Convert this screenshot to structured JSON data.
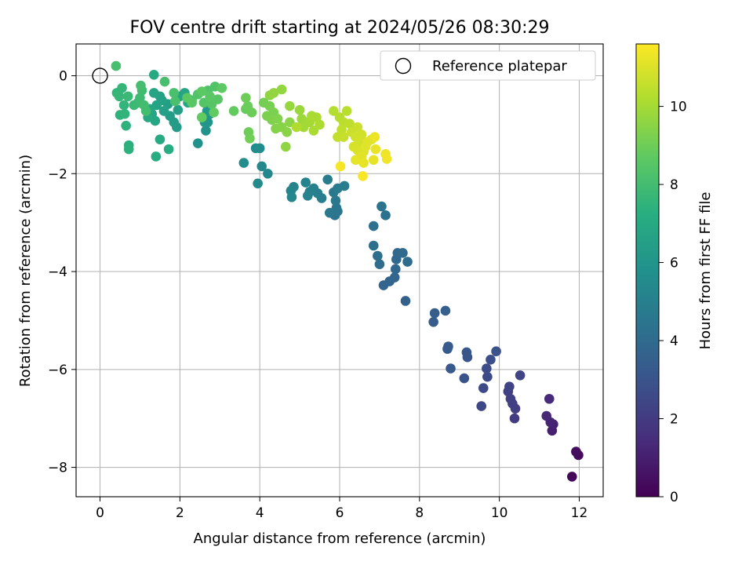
{
  "chart_data": {
    "type": "scatter",
    "title": "FOV centre drift starting at 2024/05/26 08:30:29",
    "xlabel": "Angular distance from reference (arcmin)",
    "ylabel": "Rotation from reference (arcmin)",
    "xlim": [
      -0.6,
      12.6
    ],
    "ylim": [
      -8.6,
      0.65
    ],
    "xticks": [
      0,
      2,
      4,
      6,
      8,
      10,
      12
    ],
    "yticks": [
      0,
      -2,
      -4,
      -6,
      -8
    ],
    "grid": true,
    "legend": {
      "position": "top-right",
      "entries": [
        "Reference platepar"
      ]
    },
    "reference_point": {
      "x": 0,
      "y": 0
    },
    "colorbar": {
      "label": "Hours from first FF file",
      "range": [
        0,
        11.6
      ],
      "ticks": [
        0,
        2,
        4,
        6,
        8,
        10
      ],
      "colormap": "viridis"
    },
    "series": [
      {
        "values": [
          {
            "x": 11.82,
            "y": -8.19,
            "c": 0.2
          },
          {
            "x": 11.98,
            "y": -7.75,
            "c": 0.3
          },
          {
            "x": 11.92,
            "y": -7.68,
            "c": 0.4
          },
          {
            "x": 11.32,
            "y": -7.25,
            "c": 1.0
          },
          {
            "x": 11.35,
            "y": -7.12,
            "c": 1.1
          },
          {
            "x": 11.28,
            "y": -7.08,
            "c": 1.2
          },
          {
            "x": 11.18,
            "y": -6.95,
            "c": 1.3
          },
          {
            "x": 11.25,
            "y": -6.6,
            "c": 1.4
          },
          {
            "x": 10.38,
            "y": -7.0,
            "c": 2.0
          },
          {
            "x": 10.4,
            "y": -6.8,
            "c": 2.1
          },
          {
            "x": 10.33,
            "y": -6.7,
            "c": 2.15
          },
          {
            "x": 10.28,
            "y": -6.6,
            "c": 2.2
          },
          {
            "x": 10.22,
            "y": -6.45,
            "c": 2.25
          },
          {
            "x": 10.25,
            "y": -6.35,
            "c": 2.3
          },
          {
            "x": 10.52,
            "y": -6.12,
            "c": 2.4
          },
          {
            "x": 9.55,
            "y": -6.75,
            "c": 2.5
          },
          {
            "x": 9.6,
            "y": -6.38,
            "c": 2.55
          },
          {
            "x": 9.7,
            "y": -6.15,
            "c": 2.6
          },
          {
            "x": 9.68,
            "y": -5.98,
            "c": 2.7
          },
          {
            "x": 9.78,
            "y": -5.8,
            "c": 2.8
          },
          {
            "x": 9.92,
            "y": -5.63,
            "c": 2.9
          },
          {
            "x": 9.12,
            "y": -6.18,
            "c": 3.0
          },
          {
            "x": 9.2,
            "y": -5.75,
            "c": 3.05
          },
          {
            "x": 9.18,
            "y": -5.65,
            "c": 3.1
          },
          {
            "x": 8.78,
            "y": -5.98,
            "c": 3.2
          },
          {
            "x": 8.7,
            "y": -5.58,
            "c": 3.25
          },
          {
            "x": 8.72,
            "y": -5.53,
            "c": 3.3
          },
          {
            "x": 8.35,
            "y": -5.03,
            "c": 3.4
          },
          {
            "x": 8.38,
            "y": -4.85,
            "c": 3.45
          },
          {
            "x": 8.65,
            "y": -4.8,
            "c": 3.5
          },
          {
            "x": 7.65,
            "y": -4.6,
            "c": 3.6
          },
          {
            "x": 7.1,
            "y": -4.28,
            "c": 3.7
          },
          {
            "x": 7.25,
            "y": -4.2,
            "c": 3.75
          },
          {
            "x": 7.38,
            "y": -4.12,
            "c": 3.8
          },
          {
            "x": 7.4,
            "y": -3.95,
            "c": 3.85
          },
          {
            "x": 7.42,
            "y": -3.75,
            "c": 3.9
          },
          {
            "x": 7.45,
            "y": -3.62,
            "c": 3.95
          },
          {
            "x": 7.58,
            "y": -3.62,
            "c": 4.0
          },
          {
            "x": 7.7,
            "y": -3.8,
            "c": 4.05
          },
          {
            "x": 7.0,
            "y": -3.85,
            "c": 4.1
          },
          {
            "x": 6.95,
            "y": -3.68,
            "c": 4.15
          },
          {
            "x": 6.85,
            "y": -3.47,
            "c": 4.2
          },
          {
            "x": 6.85,
            "y": -3.07,
            "c": 4.3
          },
          {
            "x": 7.15,
            "y": -2.85,
            "c": 4.35
          },
          {
            "x": 7.05,
            "y": -2.67,
            "c": 4.4
          },
          {
            "x": 5.88,
            "y": -2.85,
            "c": 4.45
          },
          {
            "x": 5.95,
            "y": -2.77,
            "c": 4.5
          },
          {
            "x": 5.92,
            "y": -2.7,
            "c": 4.55
          },
          {
            "x": 5.75,
            "y": -2.8,
            "c": 4.6
          },
          {
            "x": 5.9,
            "y": -2.55,
            "c": 4.65
          },
          {
            "x": 5.85,
            "y": -2.38,
            "c": 4.7
          },
          {
            "x": 5.95,
            "y": -2.3,
            "c": 4.75
          },
          {
            "x": 6.12,
            "y": -2.25,
            "c": 4.8
          },
          {
            "x": 5.7,
            "y": -2.12,
            "c": 4.85
          },
          {
            "x": 5.55,
            "y": -2.5,
            "c": 4.9
          },
          {
            "x": 5.45,
            "y": -2.4,
            "c": 4.95
          },
          {
            "x": 5.35,
            "y": -2.3,
            "c": 5.0
          },
          {
            "x": 5.25,
            "y": -2.37,
            "c": 5.05
          },
          {
            "x": 5.2,
            "y": -2.45,
            "c": 5.1
          },
          {
            "x": 5.15,
            "y": -2.18,
            "c": 5.15
          },
          {
            "x": 4.85,
            "y": -2.27,
            "c": 5.2
          },
          {
            "x": 4.78,
            "y": -2.35,
            "c": 5.25
          },
          {
            "x": 4.8,
            "y": -2.48,
            "c": 5.3
          },
          {
            "x": 4.2,
            "y": -2.0,
            "c": 5.35
          },
          {
            "x": 4.05,
            "y": -1.85,
            "c": 5.4
          },
          {
            "x": 3.95,
            "y": -2.2,
            "c": 5.45
          },
          {
            "x": 3.9,
            "y": -1.48,
            "c": 5.5
          },
          {
            "x": 4.0,
            "y": -1.48,
            "c": 5.55
          },
          {
            "x": 3.6,
            "y": -1.78,
            "c": 5.6
          },
          {
            "x": 2.45,
            "y": -1.38,
            "c": 5.8
          },
          {
            "x": 2.65,
            "y": -1.12,
            "c": 5.9
          },
          {
            "x": 2.7,
            "y": -0.95,
            "c": 6.0
          },
          {
            "x": 2.55,
            "y": -0.85,
            "c": 6.1
          },
          {
            "x": 2.75,
            "y": -0.78,
            "c": 6.15
          },
          {
            "x": 2.68,
            "y": -0.72,
            "c": 6.2
          },
          {
            "x": 2.62,
            "y": -0.95,
            "c": 6.05
          },
          {
            "x": 1.92,
            "y": -1.05,
            "c": 6.3
          },
          {
            "x": 1.85,
            "y": -0.95,
            "c": 6.35
          },
          {
            "x": 1.75,
            "y": -0.82,
            "c": 6.4
          },
          {
            "x": 1.95,
            "y": -0.7,
            "c": 6.45
          },
          {
            "x": 1.7,
            "y": -0.58,
            "c": 6.5
          },
          {
            "x": 1.6,
            "y": -0.72,
            "c": 6.55
          },
          {
            "x": 1.55,
            "y": -0.5,
            "c": 6.6
          },
          {
            "x": 1.5,
            "y": -0.42,
            "c": 6.65
          },
          {
            "x": 1.42,
            "y": -0.6,
            "c": 6.7
          },
          {
            "x": 1.35,
            "y": -0.35,
            "c": 6.75
          },
          {
            "x": 1.3,
            "y": -0.78,
            "c": 6.8
          },
          {
            "x": 1.38,
            "y": -0.92,
            "c": 6.85
          },
          {
            "x": 1.25,
            "y": -0.68,
            "c": 6.9
          },
          {
            "x": 1.2,
            "y": -0.85,
            "c": 6.95
          },
          {
            "x": 1.35,
            "y": 0.02,
            "c": 7.0
          },
          {
            "x": 2.0,
            "y": -0.42,
            "c": 6.7
          },
          {
            "x": 2.12,
            "y": -0.35,
            "c": 6.75
          },
          {
            "x": 2.2,
            "y": -0.55,
            "c": 6.8
          },
          {
            "x": 1.5,
            "y": -1.3,
            "c": 7.0
          },
          {
            "x": 1.4,
            "y": -1.65,
            "c": 7.1
          },
          {
            "x": 1.72,
            "y": -1.5,
            "c": 7.2
          },
          {
            "x": 0.72,
            "y": -1.42,
            "c": 7.3
          },
          {
            "x": 0.72,
            "y": -1.5,
            "c": 7.35
          },
          {
            "x": 0.65,
            "y": -1.02,
            "c": 7.4
          },
          {
            "x": 0.5,
            "y": -0.8,
            "c": 7.45
          },
          {
            "x": 0.62,
            "y": -0.78,
            "c": 7.5
          },
          {
            "x": 0.6,
            "y": -0.6,
            "c": 7.55
          },
          {
            "x": 0.42,
            "y": -0.35,
            "c": 7.6
          },
          {
            "x": 0.55,
            "y": -0.25,
            "c": 7.65
          },
          {
            "x": 0.48,
            "y": -0.42,
            "c": 7.7
          },
          {
            "x": 0.7,
            "y": -0.42,
            "c": 7.75
          },
          {
            "x": 0.85,
            "y": -0.6,
            "c": 7.8
          },
          {
            "x": 0.95,
            "y": -0.55,
            "c": 7.85
          },
          {
            "x": 1.0,
            "y": -0.45,
            "c": 7.9
          },
          {
            "x": 1.05,
            "y": -0.3,
            "c": 7.95
          },
          {
            "x": 1.1,
            "y": -0.6,
            "c": 8.0
          },
          {
            "x": 1.15,
            "y": -0.72,
            "c": 8.0
          },
          {
            "x": 1.02,
            "y": -0.2,
            "c": 8.05
          },
          {
            "x": 0.4,
            "y": 0.2,
            "c": 8.1
          },
          {
            "x": 1.62,
            "y": -0.12,
            "c": 8.1
          },
          {
            "x": 1.85,
            "y": -0.35,
            "c": 8.15
          },
          {
            "x": 1.88,
            "y": -0.52,
            "c": 8.2
          },
          {
            "x": 2.3,
            "y": -0.5,
            "c": 8.25
          },
          {
            "x": 2.45,
            "y": -0.38,
            "c": 8.3
          },
          {
            "x": 2.7,
            "y": -0.3,
            "c": 8.35
          },
          {
            "x": 2.88,
            "y": -0.22,
            "c": 8.4
          },
          {
            "x": 2.6,
            "y": -0.55,
            "c": 8.45
          },
          {
            "x": 2.8,
            "y": -0.58,
            "c": 8.5
          },
          {
            "x": 2.95,
            "y": -0.48,
            "c": 8.5
          },
          {
            "x": 2.3,
            "y": -0.55,
            "c": 8.55
          },
          {
            "x": 2.18,
            "y": -0.45,
            "c": 8.6
          },
          {
            "x": 2.75,
            "y": -0.42,
            "c": 8.6
          },
          {
            "x": 2.55,
            "y": -0.32,
            "c": 8.65
          },
          {
            "x": 3.05,
            "y": -0.25,
            "c": 8.7
          },
          {
            "x": 2.85,
            "y": -0.75,
            "c": 8.75
          },
          {
            "x": 2.55,
            "y": -0.85,
            "c": 8.75
          },
          {
            "x": 3.35,
            "y": -0.72,
            "c": 8.8
          },
          {
            "x": 3.65,
            "y": -0.68,
            "c": 8.85
          },
          {
            "x": 3.7,
            "y": -0.62,
            "c": 8.9
          },
          {
            "x": 3.8,
            "y": -0.75,
            "c": 8.95
          },
          {
            "x": 3.72,
            "y": -1.15,
            "c": 9.0
          },
          {
            "x": 3.75,
            "y": -1.28,
            "c": 9.05
          },
          {
            "x": 3.65,
            "y": -0.45,
            "c": 9.0
          },
          {
            "x": 4.1,
            "y": -0.55,
            "c": 9.1
          },
          {
            "x": 4.25,
            "y": -0.62,
            "c": 9.15
          },
          {
            "x": 4.35,
            "y": -0.75,
            "c": 9.2
          },
          {
            "x": 4.18,
            "y": -0.82,
            "c": 9.25
          },
          {
            "x": 4.3,
            "y": -0.9,
            "c": 9.3
          },
          {
            "x": 4.45,
            "y": -0.88,
            "c": 9.35
          },
          {
            "x": 4.4,
            "y": -1.08,
            "c": 9.4
          },
          {
            "x": 4.55,
            "y": -1.05,
            "c": 9.45
          },
          {
            "x": 4.68,
            "y": -1.15,
            "c": 9.5
          },
          {
            "x": 4.75,
            "y": -0.95,
            "c": 9.55
          },
          {
            "x": 4.65,
            "y": -1.45,
            "c": 9.6
          },
          {
            "x": 4.25,
            "y": -0.4,
            "c": 9.6
          },
          {
            "x": 4.35,
            "y": -0.35,
            "c": 9.65
          },
          {
            "x": 4.55,
            "y": -0.28,
            "c": 9.7
          },
          {
            "x": 4.75,
            "y": -0.62,
            "c": 9.75
          },
          {
            "x": 5.0,
            "y": -0.7,
            "c": 9.8
          },
          {
            "x": 5.05,
            "y": -0.88,
            "c": 9.85
          },
          {
            "x": 5.15,
            "y": -0.95,
            "c": 9.9
          },
          {
            "x": 5.1,
            "y": -1.05,
            "c": 9.95
          },
          {
            "x": 5.25,
            "y": -0.95,
            "c": 10.0
          },
          {
            "x": 5.3,
            "y": -0.82,
            "c": 10.05
          },
          {
            "x": 5.35,
            "y": -1.12,
            "c": 10.1
          },
          {
            "x": 5.42,
            "y": -0.85,
            "c": 10.1
          },
          {
            "x": 5.5,
            "y": -1.0,
            "c": 10.15
          },
          {
            "x": 4.92,
            "y": -1.05,
            "c": 10.2
          },
          {
            "x": 5.85,
            "y": -0.72,
            "c": 10.25
          },
          {
            "x": 6.0,
            "y": -0.85,
            "c": 10.3
          },
          {
            "x": 6.18,
            "y": -0.72,
            "c": 10.35
          },
          {
            "x": 6.1,
            "y": -0.95,
            "c": 10.4
          },
          {
            "x": 6.25,
            "y": -0.98,
            "c": 10.45
          },
          {
            "x": 6.05,
            "y": -1.1,
            "c": 10.5
          },
          {
            "x": 5.95,
            "y": -1.25,
            "c": 10.55
          },
          {
            "x": 6.1,
            "y": -1.25,
            "c": 10.6
          },
          {
            "x": 6.3,
            "y": -1.15,
            "c": 10.65
          },
          {
            "x": 6.45,
            "y": -1.05,
            "c": 10.7
          },
          {
            "x": 6.4,
            "y": -1.25,
            "c": 10.75
          },
          {
            "x": 6.55,
            "y": -1.2,
            "c": 10.8
          },
          {
            "x": 6.5,
            "y": -1.35,
            "c": 10.85
          },
          {
            "x": 6.35,
            "y": -1.45,
            "c": 10.9
          },
          {
            "x": 6.45,
            "y": -1.52,
            "c": 10.95
          },
          {
            "x": 6.6,
            "y": -1.55,
            "c": 11.0
          },
          {
            "x": 6.7,
            "y": -1.35,
            "c": 11.05
          },
          {
            "x": 6.65,
            "y": -1.45,
            "c": 11.05
          },
          {
            "x": 6.8,
            "y": -1.3,
            "c": 11.1
          },
          {
            "x": 6.55,
            "y": -1.65,
            "c": 11.1
          },
          {
            "x": 6.4,
            "y": -1.72,
            "c": 11.15
          },
          {
            "x": 6.6,
            "y": -1.78,
            "c": 11.2
          },
          {
            "x": 6.85,
            "y": -1.72,
            "c": 11.2
          },
          {
            "x": 6.9,
            "y": -1.5,
            "c": 11.25
          },
          {
            "x": 6.88,
            "y": -1.25,
            "c": 11.3
          },
          {
            "x": 7.15,
            "y": -1.6,
            "c": 11.35
          },
          {
            "x": 7.18,
            "y": -1.7,
            "c": 11.4
          },
          {
            "x": 6.02,
            "y": -1.85,
            "c": 11.45
          },
          {
            "x": 6.58,
            "y": -2.05,
            "c": 11.5
          }
        ]
      }
    ]
  }
}
